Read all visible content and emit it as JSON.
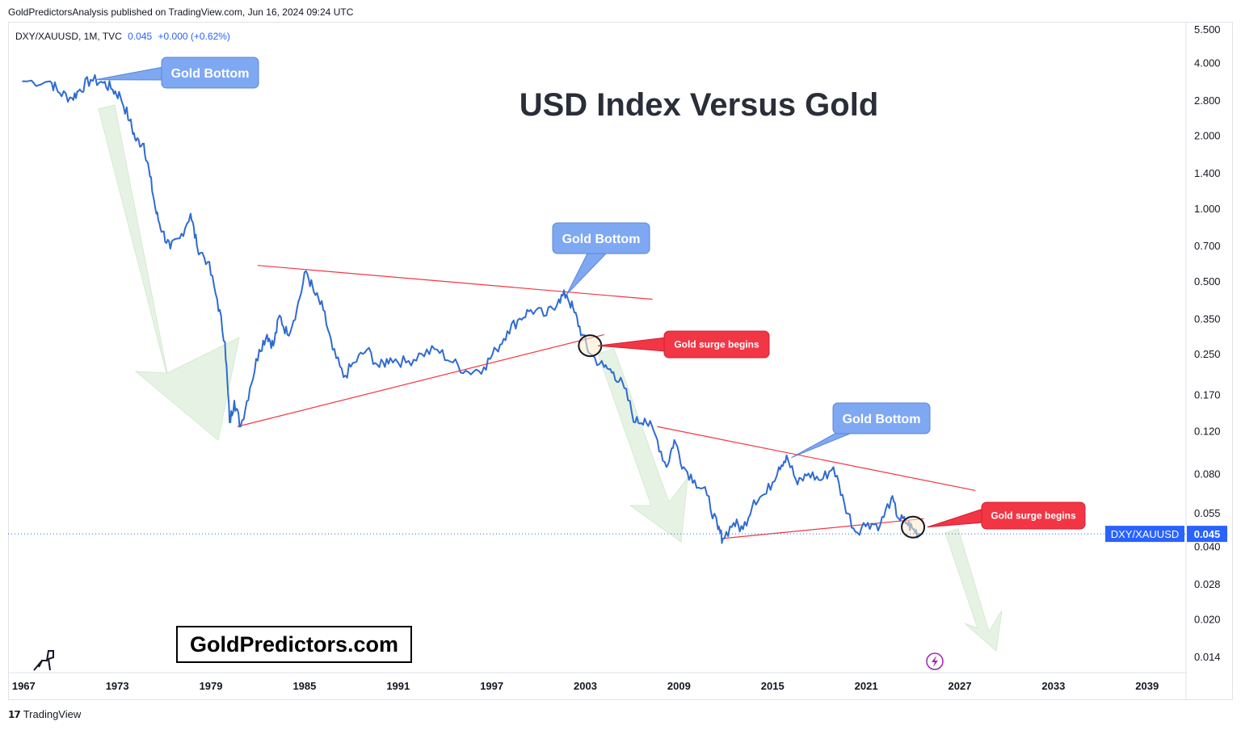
{
  "publisher": "GoldPredictorsAnalysis published on TradingView.com, Jun 16, 2024 09:24 UTC",
  "symbol": {
    "name": "DXY/XAUUSD, 1M, TVC",
    "last": "0.045",
    "change": "+0.000 (+0.62%)"
  },
  "footer": {
    "brand": "TradingView"
  },
  "watermark": "GoldPredictors.com",
  "colors": {
    "line": "#2f6bd1",
    "trend": "#f23645",
    "callout_blue": "#7fa8f2",
    "callout_red": "#f23645",
    "arrow_fill": "#e6f3e4",
    "price_tag": "#2962ff"
  },
  "chart_data": {
    "type": "line",
    "title": "USD Index Versus Gold",
    "series_name": "DXY/XAUUSD",
    "price_label": "DXY/XAUUSD",
    "price_value": "0.045",
    "current_value": 0.045,
    "y_scale": "log",
    "y_ticks": [
      "5.500",
      "4.000",
      "2.800",
      "2.000",
      "1.400",
      "1.000",
      "0.700",
      "0.500",
      "0.350",
      "0.250",
      "0.170",
      "0.120",
      "0.080",
      "0.055",
      "0.040",
      "0.028",
      "0.020",
      "0.014"
    ],
    "x_ticks": [
      "1967",
      "1973",
      "1979",
      "1985",
      "1991",
      "1997",
      "2003",
      "2009",
      "2015",
      "2021",
      "2027",
      "2033",
      "2039"
    ],
    "xlim": [
      1966,
      2041.5
    ],
    "ylim": [
      0.012,
      5.9
    ],
    "points": [
      [
        1966.9,
        3.35
      ],
      [
        1968.7,
        3.35
      ],
      [
        1969.3,
        3.0
      ],
      [
        1970.1,
        2.85
      ],
      [
        1970.6,
        3.1
      ],
      [
        1971.3,
        3.4
      ],
      [
        1972.1,
        3.3
      ],
      [
        1972.7,
        3.1
      ],
      [
        1973.2,
        2.9
      ],
      [
        1973.8,
        2.3
      ],
      [
        1974.2,
        1.9
      ],
      [
        1974.7,
        1.85
      ],
      [
        1975.1,
        1.35
      ],
      [
        1975.5,
        0.95
      ],
      [
        1975.9,
        0.8
      ],
      [
        1976.4,
        0.68
      ],
      [
        1977.0,
        0.75
      ],
      [
        1977.7,
        0.95
      ],
      [
        1978.1,
        0.7
      ],
      [
        1978.8,
        0.6
      ],
      [
        1979.4,
        0.42
      ],
      [
        1979.9,
        0.28
      ],
      [
        1980.2,
        0.13
      ],
      [
        1980.5,
        0.16
      ],
      [
        1980.9,
        0.125
      ],
      [
        1981.5,
        0.18
      ],
      [
        1982.1,
        0.26
      ],
      [
        1982.6,
        0.3
      ],
      [
        1983.0,
        0.27
      ],
      [
        1983.4,
        0.36
      ],
      [
        1983.9,
        0.3
      ],
      [
        1984.5,
        0.38
      ],
      [
        1985.1,
        0.55
      ],
      [
        1985.6,
        0.45
      ],
      [
        1986.2,
        0.38
      ],
      [
        1986.8,
        0.26
      ],
      [
        1987.5,
        0.2
      ],
      [
        1988.2,
        0.23
      ],
      [
        1989.0,
        0.26
      ],
      [
        1989.8,
        0.22
      ],
      [
        1990.5,
        0.24
      ],
      [
        1991.5,
        0.23
      ],
      [
        1992.5,
        0.25
      ],
      [
        1993.5,
        0.26
      ],
      [
        1994.5,
        0.23
      ],
      [
        1995.5,
        0.21
      ],
      [
        1996.5,
        0.22
      ],
      [
        1997.3,
        0.26
      ],
      [
        1998.0,
        0.31
      ],
      [
        1998.8,
        0.35
      ],
      [
        1999.5,
        0.38
      ],
      [
        2000.5,
        0.36
      ],
      [
        2001.3,
        0.42
      ],
      [
        2001.8,
        0.44
      ],
      [
        2002.3,
        0.37
      ],
      [
        2002.8,
        0.3
      ],
      [
        2003.3,
        0.25
      ],
      [
        2004.2,
        0.22
      ],
      [
        2004.8,
        0.21
      ],
      [
        2005.5,
        0.18
      ],
      [
        2006.2,
        0.13
      ],
      [
        2006.8,
        0.135
      ],
      [
        2007.5,
        0.115
      ],
      [
        2008.2,
        0.085
      ],
      [
        2008.7,
        0.11
      ],
      [
        2009.3,
        0.085
      ],
      [
        2010.0,
        0.075
      ],
      [
        2010.8,
        0.065
      ],
      [
        2011.5,
        0.047
      ],
      [
        2011.8,
        0.043
      ],
      [
        2012.5,
        0.05
      ],
      [
        2013.1,
        0.047
      ],
      [
        2013.8,
        0.062
      ],
      [
        2014.6,
        0.066
      ],
      [
        2015.4,
        0.085
      ],
      [
        2015.9,
        0.095
      ],
      [
        2016.6,
        0.072
      ],
      [
        2017.3,
        0.08
      ],
      [
        2018.1,
        0.075
      ],
      [
        2018.9,
        0.085
      ],
      [
        2019.6,
        0.06
      ],
      [
        2020.3,
        0.046
      ],
      [
        2021.1,
        0.05
      ],
      [
        2021.9,
        0.049
      ],
      [
        2022.6,
        0.063
      ],
      [
        2023.1,
        0.052
      ],
      [
        2023.6,
        0.05
      ],
      [
        2024.0,
        0.047
      ],
      [
        2024.4,
        0.045
      ]
    ],
    "trendlines": [
      {
        "from": [
          1980.7,
          0.125
        ],
        "to": [
          2004.2,
          0.3
        ]
      },
      {
        "from": [
          1982.0,
          0.58
        ],
        "to": [
          2007.3,
          0.42
        ]
      },
      {
        "from": [
          2007.6,
          0.125
        ],
        "to": [
          2028.0,
          0.068
        ]
      },
      {
        "from": [
          2011.7,
          0.043
        ],
        "to": [
          2024.7,
          0.052
        ]
      }
    ],
    "circles": [
      {
        "at": [
          2003.3,
          0.27
        ]
      },
      {
        "at": [
          2024.0,
          0.048
        ]
      }
    ],
    "annotations": [
      {
        "kind": "gold-bottom",
        "text": "Gold Bottom",
        "anchor": [
          1971.3,
          3.4
        ]
      },
      {
        "kind": "gold-bottom",
        "text": "Gold Bottom",
        "anchor": [
          2001.8,
          0.44
        ]
      },
      {
        "kind": "gold-bottom",
        "text": "Gold Bottom",
        "anchor": [
          2016.2,
          0.093
        ]
      },
      {
        "kind": "gold-surge",
        "text": "Gold surge begins",
        "anchor": [
          2003.3,
          0.27
        ]
      },
      {
        "kind": "gold-surge",
        "text": "Gold surge begins",
        "anchor": [
          2024.4,
          0.048
        ]
      }
    ]
  }
}
